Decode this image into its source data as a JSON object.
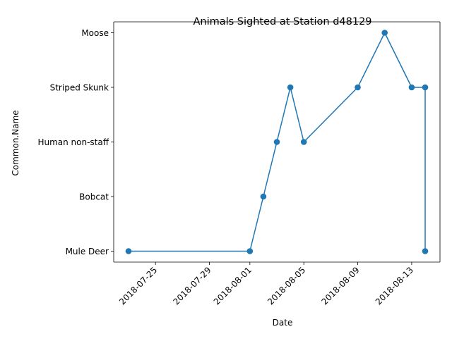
{
  "chart_data": {
    "type": "line",
    "title": "Animals Sighted at Station d48129",
    "xlabel": "Date",
    "ylabel": "Common.Name",
    "x_is_date": true,
    "xlim": [
      "2018-07-22",
      "2018-08-15"
    ],
    "y_categories": [
      "Mule Deer",
      "Bobcat",
      "Human non-staff",
      "Striped Skunk",
      "Moose"
    ],
    "x_ticks": [
      "2018-07-25",
      "2018-07-29",
      "2018-08-01",
      "2018-08-05",
      "2018-08-09",
      "2018-08-13"
    ],
    "grid": false,
    "legend": false,
    "series": [
      {
        "color": "#1f77b4",
        "marker": "circle",
        "points": [
          {
            "x": "2018-07-23",
            "y": "Mule Deer"
          },
          {
            "x": "2018-08-01",
            "y": "Mule Deer"
          },
          {
            "x": "2018-08-02",
            "y": "Bobcat"
          },
          {
            "x": "2018-08-03",
            "y": "Human non-staff"
          },
          {
            "x": "2018-08-04",
            "y": "Striped Skunk"
          },
          {
            "x": "2018-08-05",
            "y": "Human non-staff"
          },
          {
            "x": "2018-08-09",
            "y": "Striped Skunk"
          },
          {
            "x": "2018-08-11",
            "y": "Moose"
          },
          {
            "x": "2018-08-13",
            "y": "Striped Skunk"
          },
          {
            "x": "2018-08-14",
            "y": "Striped Skunk"
          },
          {
            "x": "2018-08-14",
            "y": "Mule Deer"
          }
        ]
      }
    ]
  }
}
